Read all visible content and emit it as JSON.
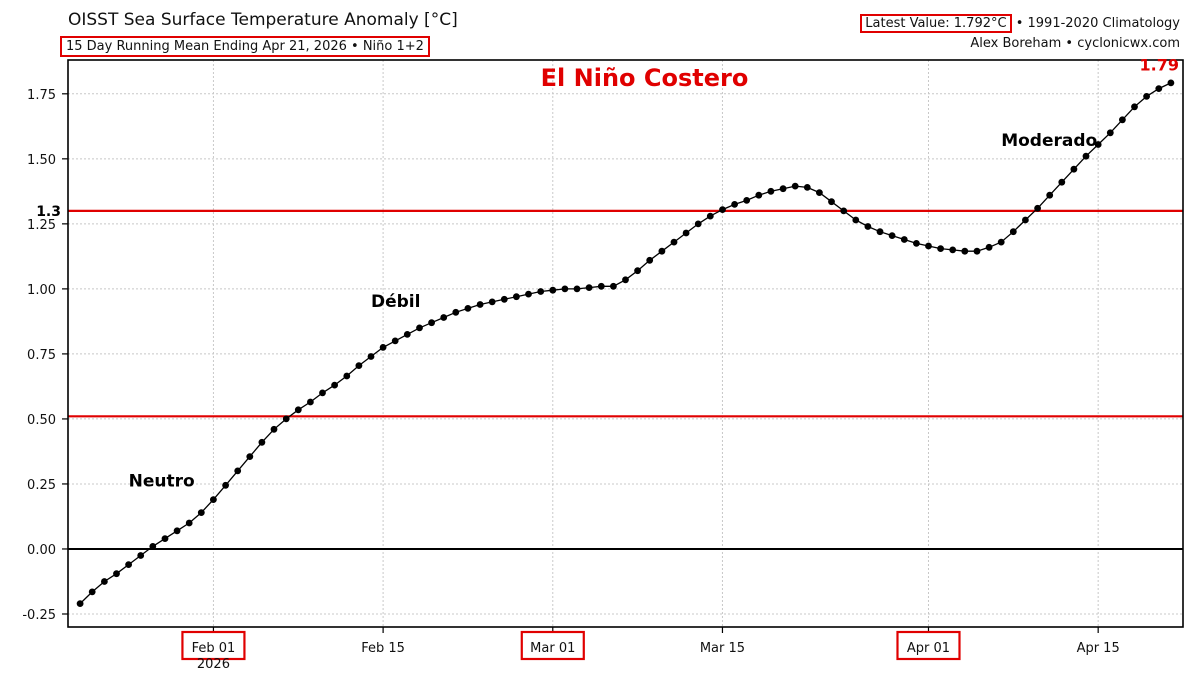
{
  "header": {
    "title": "OISST Sea Surface Temperature Anomaly [°C]",
    "subtitle": "15 Day Running Mean Ending Apr 21, 2026 • Niño 1+2",
    "latest_value": "Latest Value: 1.792°C",
    "climatology": " • 1991-2020 Climatology",
    "credit": "Alex Boreham • cyclonicwx.com"
  },
  "colors": {
    "threshold": "#e00000",
    "series": "#000000",
    "grid": "#c8c8c8"
  },
  "chart_data": {
    "type": "line",
    "title": "OISST Sea Surface Temperature Anomaly [°C]",
    "xlabel": "",
    "ylabel": "",
    "x_range": [
      "2026-01-20",
      "2026-04-22"
    ],
    "ylim": [
      -0.3,
      1.88
    ],
    "grid": true,
    "x_ticks": [
      {
        "date": "2026-02-01",
        "label": "Feb 01",
        "sublabel": "2026",
        "highlight": true
      },
      {
        "date": "2026-02-15",
        "label": "Feb 15",
        "highlight": false
      },
      {
        "date": "2026-03-01",
        "label": "Mar 01",
        "highlight": true
      },
      {
        "date": "2026-03-15",
        "label": "Mar 15",
        "highlight": false
      },
      {
        "date": "2026-04-01",
        "label": "Apr 01",
        "highlight": true
      },
      {
        "date": "2026-04-15",
        "label": "Apr 15",
        "highlight": false
      }
    ],
    "y_ticks": [
      "-0.25",
      "0.00",
      "0.25",
      "0.50",
      "0.75",
      "1.00",
      "1.25",
      "1.50",
      "1.75"
    ],
    "thresholds": [
      {
        "value": 1.3,
        "label": "1.3"
      },
      {
        "value": 0.51,
        "label": ""
      }
    ],
    "zero_line": 0,
    "annotations": [
      {
        "text": "El Niño Costero",
        "date": "2026-02-28",
        "y": 1.78,
        "color": "#e00000",
        "size": 24
      },
      {
        "text": "Neutro",
        "date": "2026-01-25",
        "y": 0.24,
        "color": "#000000",
        "size": 17
      },
      {
        "text": "Débil",
        "date": "2026-02-14",
        "y": 0.93,
        "color": "#000000",
        "size": 17
      },
      {
        "text": "Moderado",
        "date": "2026-04-07",
        "y": 1.55,
        "color": "#000000",
        "size": 17
      },
      {
        "text": "1.79",
        "date": "2026-04-21",
        "y": 1.84,
        "color": "#e00000",
        "size": 16
      }
    ],
    "series": [
      {
        "x_start": "2026-01-21",
        "values": [
          -0.21,
          -0.165,
          -0.125,
          -0.095,
          -0.06,
          -0.025,
          0.01,
          0.04,
          0.07,
          0.1,
          0.14,
          0.19,
          0.245,
          0.3,
          0.355,
          0.41,
          0.46,
          0.5,
          0.535,
          0.565,
          0.6,
          0.63,
          0.665,
          0.705,
          0.74,
          0.775,
          0.8,
          0.825,
          0.85,
          0.87,
          0.89,
          0.91,
          0.925,
          0.94,
          0.95,
          0.96,
          0.97,
          0.98,
          0.99,
          0.995,
          1.0,
          1.0,
          1.005,
          1.01,
          1.01,
          1.035,
          1.07,
          1.11,
          1.145,
          1.18,
          1.215,
          1.25,
          1.28,
          1.305,
          1.325,
          1.34,
          1.36,
          1.375,
          1.385,
          1.395,
          1.39,
          1.37,
          1.335,
          1.3,
          1.265,
          1.24,
          1.22,
          1.205,
          1.19,
          1.175,
          1.165,
          1.155,
          1.15,
          1.145,
          1.145,
          1.16,
          1.18,
          1.22,
          1.265,
          1.31,
          1.36,
          1.41,
          1.46,
          1.51,
          1.555,
          1.6,
          1.65,
          1.7,
          1.74,
          1.77,
          1.792
        ]
      }
    ]
  }
}
